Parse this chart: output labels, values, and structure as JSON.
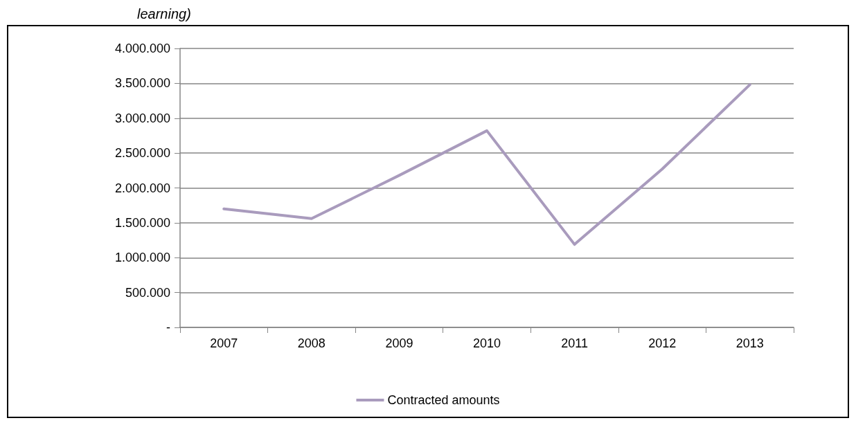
{
  "chart_data": {
    "type": "line",
    "annotations": [
      "learning)"
    ],
    "categories": [
      "2007",
      "2008",
      "2009",
      "2010",
      "2011",
      "2012",
      "2013"
    ],
    "series": [
      {
        "name": "Contracted amounts",
        "color": "#a99bbd",
        "values": [
          1700000,
          1560000,
          2180000,
          2820000,
          1190000,
          2270000,
          3480000
        ]
      }
    ],
    "ylim": [
      0,
      4000000
    ],
    "yticks": [
      {
        "value": 0,
        "label": "-"
      },
      {
        "value": 500000,
        "label": "500.000"
      },
      {
        "value": 1000000,
        "label": "1.000.000"
      },
      {
        "value": 1500000,
        "label": "1.500.000"
      },
      {
        "value": 2000000,
        "label": "2.000.000"
      },
      {
        "value": 2500000,
        "label": "2.500.000"
      },
      {
        "value": 3000000,
        "label": "3.000.000"
      },
      {
        "value": 3500000,
        "label": "3.500.000"
      },
      {
        "value": 4000000,
        "label": "4.000.000"
      }
    ],
    "grid": "y",
    "legend": "bottom",
    "marker": "none",
    "line_style": "solid"
  }
}
